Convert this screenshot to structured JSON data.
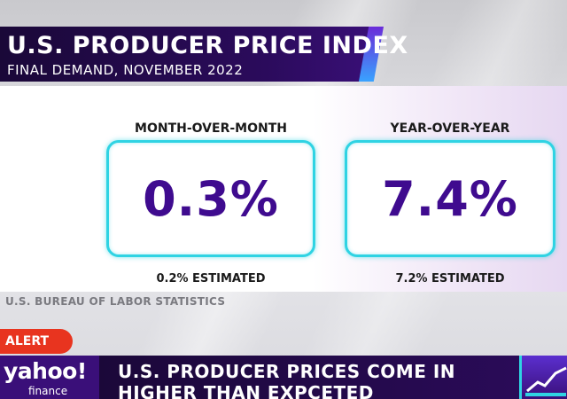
{
  "title": {
    "main": "U.S. PRODUCER PRICE INDEX",
    "sub": "FINAL DEMAND, NOVEMBER 2022"
  },
  "stats": [
    {
      "label": "MONTH-OVER-MONTH",
      "value": "0.3%",
      "estimate": "0.2% ESTIMATED"
    },
    {
      "label": "YEAR-OVER-YEAR",
      "value": "7.4%",
      "estimate": "7.2% ESTIMATED"
    }
  ],
  "source": "U.S. BUREAU OF LABOR STATISTICS",
  "alert": "ALERT",
  "logo": {
    "name": "yahoo!",
    "sub": "finance"
  },
  "headline": {
    "line1": "U.S. PRODUCER PRICES COME IN",
    "line2": "HIGHER THAN EXPCETED"
  },
  "colors": {
    "accent_purple": "#3f0b8f",
    "box_border": "#2fd3e3",
    "alert_red": "#e8341f",
    "banner_dark": "#1a0838"
  },
  "icons": {
    "brand_chip": "chart-line-icon"
  }
}
